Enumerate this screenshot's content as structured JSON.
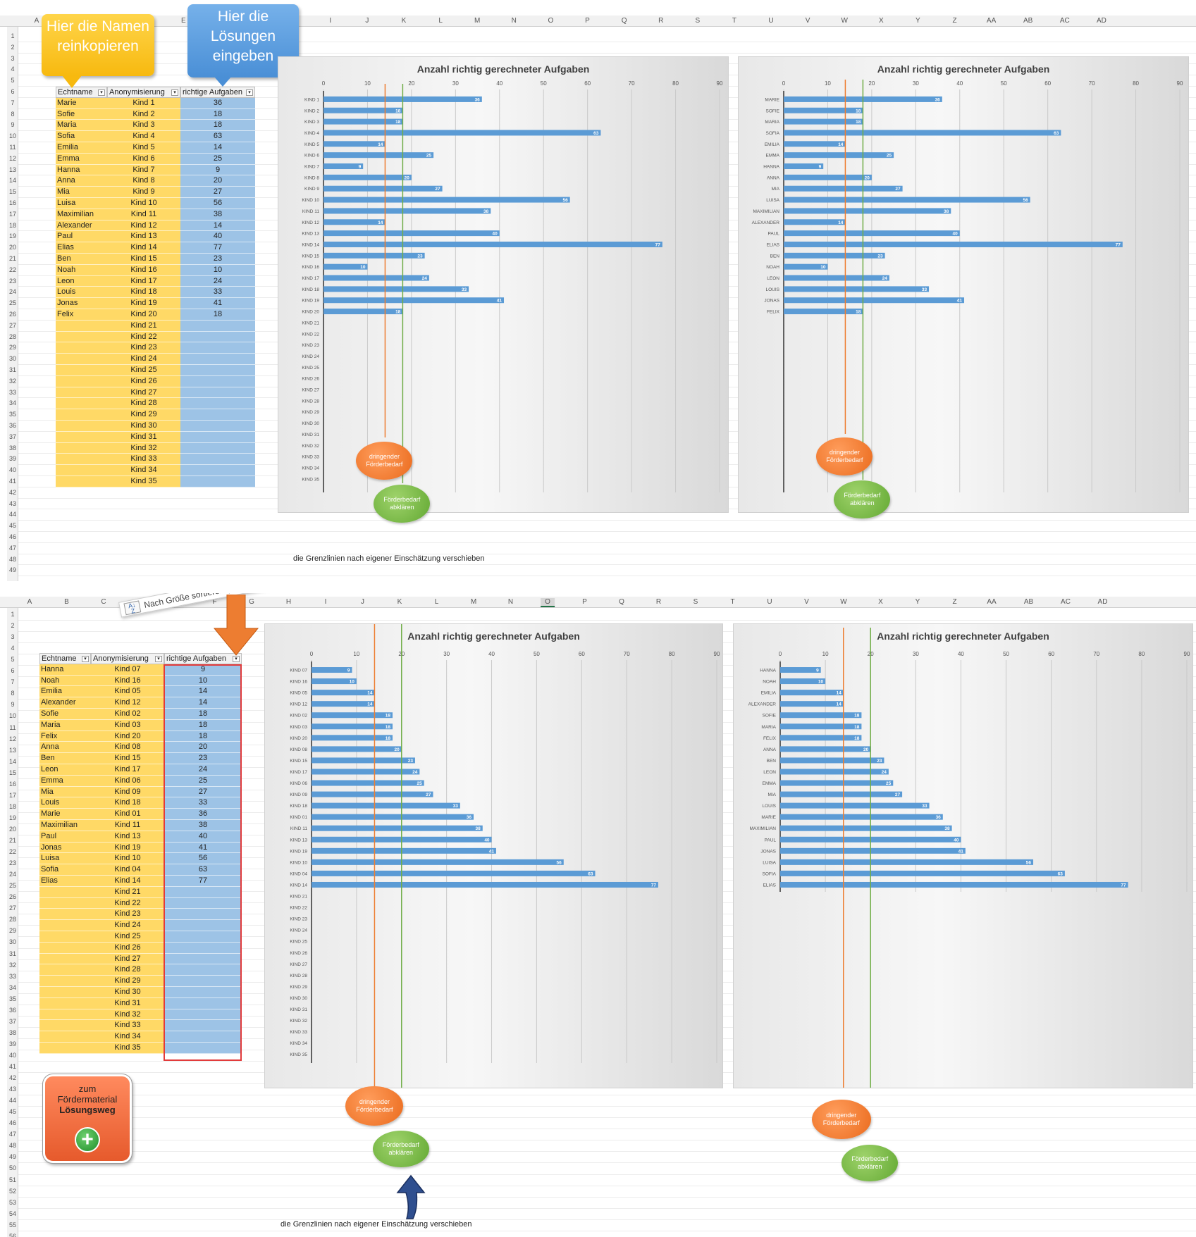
{
  "top": {
    "columns": [
      "A",
      "B",
      "C",
      "D",
      "E",
      "F",
      "G",
      "H",
      "I",
      "J",
      "K",
      "L",
      "M",
      "N",
      "O",
      "P",
      "Q",
      "R",
      "S",
      "T",
      "U",
      "V",
      "W",
      "X",
      "Y",
      "Z",
      "AA",
      "AB",
      "AC",
      "AD"
    ],
    "rows": [
      "1",
      "2",
      "3",
      "4",
      "5",
      "6",
      "7",
      "8",
      "9",
      "10",
      "11",
      "12",
      "13",
      "14",
      "15",
      "16",
      "17",
      "18",
      "19",
      "20",
      "21",
      "22",
      "23",
      "24",
      "25",
      "26",
      "27",
      "28",
      "29",
      "30",
      "31",
      "32",
      "33",
      "34",
      "35",
      "36",
      "37",
      "38",
      "39",
      "40",
      "41",
      "42",
      "43",
      "44",
      "45",
      "46",
      "47",
      "48",
      "49"
    ],
    "callout_names": "Hier die Namen reinkopieren",
    "callout_solutions": "Hier die Lösungen eingeben",
    "headers": [
      "Echtname",
      "Anonymisierung",
      "richtige Aufgaben"
    ],
    "table": [
      [
        "Marie",
        "Kind 1",
        "36"
      ],
      [
        "Sofie",
        "Kind 2",
        "18"
      ],
      [
        "Maria",
        "Kind 3",
        "18"
      ],
      [
        "Sofia",
        "Kind 4",
        "63"
      ],
      [
        "Emilia",
        "Kind 5",
        "14"
      ],
      [
        "Emma",
        "Kind 6",
        "25"
      ],
      [
        "Hanna",
        "Kind 7",
        "9"
      ],
      [
        "Anna",
        "Kind 8",
        "20"
      ],
      [
        "Mia",
        "Kind 9",
        "27"
      ],
      [
        "Luisa",
        "Kind 10",
        "56"
      ],
      [
        "Maximilian",
        "Kind 11",
        "38"
      ],
      [
        "Alexander",
        "Kind 12",
        "14"
      ],
      [
        "Paul",
        "Kind 13",
        "40"
      ],
      [
        "Elias",
        "Kind 14",
        "77"
      ],
      [
        "Ben",
        "Kind 15",
        "23"
      ],
      [
        "Noah",
        "Kind 16",
        "10"
      ],
      [
        "Leon",
        "Kind 17",
        "24"
      ],
      [
        "Louis",
        "Kind 18",
        "33"
      ],
      [
        "Jonas",
        "Kind 19",
        "41"
      ],
      [
        "Felix",
        "Kind 20",
        "18"
      ],
      [
        "",
        "Kind 21",
        ""
      ],
      [
        "",
        "Kind 22",
        ""
      ],
      [
        "",
        "Kind 23",
        ""
      ],
      [
        "",
        "Kind 24",
        ""
      ],
      [
        "",
        "Kind 25",
        ""
      ],
      [
        "",
        "Kind 26",
        ""
      ],
      [
        "",
        "Kind 27",
        ""
      ],
      [
        "",
        "Kind 28",
        ""
      ],
      [
        "",
        "Kind 29",
        ""
      ],
      [
        "",
        "Kind 30",
        ""
      ],
      [
        "",
        "Kind 31",
        ""
      ],
      [
        "",
        "Kind 32",
        ""
      ],
      [
        "",
        "Kind 33",
        ""
      ],
      [
        "",
        "Kind 34",
        ""
      ],
      [
        "",
        "Kind 35",
        ""
      ]
    ],
    "note": "die Grenzlinien nach eigener Einschätzung verschieben"
  },
  "bottom": {
    "columns": [
      "A",
      "B",
      "C",
      "D",
      "E",
      "F",
      "G",
      "H",
      "I",
      "J",
      "K",
      "L",
      "M",
      "N",
      "O",
      "P",
      "Q",
      "R",
      "S",
      "T",
      "U",
      "V",
      "W",
      "X",
      "Y",
      "Z",
      "AA",
      "AB",
      "AC",
      "AD"
    ],
    "selected_column": "O",
    "rows": [
      "1",
      "2",
      "3",
      "4",
      "5",
      "6",
      "7",
      "8",
      "9",
      "10",
      "11",
      "12",
      "13",
      "14",
      "15",
      "16",
      "17",
      "18",
      "19",
      "20",
      "21",
      "22",
      "23",
      "24",
      "25",
      "26",
      "27",
      "28",
      "29",
      "30",
      "31",
      "32",
      "33",
      "34",
      "35",
      "36",
      "37",
      "38",
      "39",
      "40",
      "41",
      "42",
      "43",
      "44",
      "45",
      "46",
      "47",
      "48",
      "49",
      "50",
      "51",
      "52",
      "53",
      "54",
      "55",
      "56"
    ],
    "sort_label": "Nach Größe sortieren (aufsteigend)",
    "headers": [
      "Echtname",
      "Anonymisierung",
      "richtige Aufgaben"
    ],
    "table": [
      [
        "Hanna",
        "Kind 07",
        "9"
      ],
      [
        "Noah",
        "Kind 16",
        "10"
      ],
      [
        "Emilia",
        "Kind 05",
        "14"
      ],
      [
        "Alexander",
        "Kind 12",
        "14"
      ],
      [
        "Sofie",
        "Kind 02",
        "18"
      ],
      [
        "Maria",
        "Kind 03",
        "18"
      ],
      [
        "Felix",
        "Kind 20",
        "18"
      ],
      [
        "Anna",
        "Kind 08",
        "20"
      ],
      [
        "Ben",
        "Kind 15",
        "23"
      ],
      [
        "Leon",
        "Kind 17",
        "24"
      ],
      [
        "Emma",
        "Kind 06",
        "25"
      ],
      [
        "Mia",
        "Kind 09",
        "27"
      ],
      [
        "Louis",
        "Kind 18",
        "33"
      ],
      [
        "Marie",
        "Kind 01",
        "36"
      ],
      [
        "Maximilian",
        "Kind 11",
        "38"
      ],
      [
        "Paul",
        "Kind 13",
        "40"
      ],
      [
        "Jonas",
        "Kind 19",
        "41"
      ],
      [
        "Luisa",
        "Kind 10",
        "56"
      ],
      [
        "Sofia",
        "Kind 04",
        "63"
      ],
      [
        "Elias",
        "Kind 14",
        "77"
      ],
      [
        "",
        "Kind 21",
        ""
      ],
      [
        "",
        "Kind 22",
        ""
      ],
      [
        "",
        "Kind 23",
        ""
      ],
      [
        "",
        "Kind 24",
        ""
      ],
      [
        "",
        "Kind 25",
        ""
      ],
      [
        "",
        "Kind 26",
        ""
      ],
      [
        "",
        "Kind 27",
        ""
      ],
      [
        "",
        "Kind 28",
        ""
      ],
      [
        "",
        "Kind 29",
        ""
      ],
      [
        "",
        "Kind 30",
        ""
      ],
      [
        "",
        "Kind 31",
        ""
      ],
      [
        "",
        "Kind 32",
        ""
      ],
      [
        "",
        "Kind 33",
        ""
      ],
      [
        "",
        "Kind 34",
        ""
      ],
      [
        "",
        "Kind 35",
        ""
      ]
    ],
    "button_line1": "zum",
    "button_line2": "Fördermaterial",
    "button_line3": "Lösungsweg",
    "note": "die Grenzlinien nach eigener Einschätzung verschieben"
  },
  "bubbles": {
    "orange": "dringender Förderbedarf",
    "green": "Förderbedarf abklären"
  },
  "colors": {
    "bar": "#5b9bd5",
    "orange_line": "#ed7d31",
    "green_line": "#70ad47",
    "names_column": "#ffd966",
    "values_column": "#9dc3e6"
  },
  "chart_data": [
    {
      "type": "bar",
      "title": "Anzahl richtig gerechneter Aufgaben",
      "orientation": "horizontal",
      "xlim": [
        0,
        90
      ],
      "xticks": [
        0,
        10,
        20,
        30,
        40,
        50,
        60,
        70,
        80,
        90
      ],
      "categories": [
        "KIND 1",
        "KIND 2",
        "KIND 3",
        "KIND 4",
        "KIND 5",
        "KIND 6",
        "KIND 7",
        "KIND 8",
        "KIND 9",
        "KIND 10",
        "KIND 11",
        "KIND 12",
        "KIND 13",
        "KIND 14",
        "KIND 15",
        "KIND 16",
        "KIND 17",
        "KIND 18",
        "KIND 19",
        "KIND 20",
        "KIND 21",
        "KIND 22",
        "KIND 23",
        "KIND 24",
        "KIND 25",
        "KIND 26",
        "KIND 27",
        "KIND 28",
        "KIND 29",
        "KIND 30",
        "KIND 31",
        "KIND 32",
        "KIND 33",
        "KIND 34",
        "KIND 35"
      ],
      "values": [
        36,
        18,
        18,
        63,
        14,
        25,
        9,
        20,
        27,
        56,
        38,
        14,
        40,
        77,
        23,
        10,
        24,
        33,
        41,
        18,
        null,
        null,
        null,
        null,
        null,
        null,
        null,
        null,
        null,
        null,
        null,
        null,
        null,
        null,
        null
      ],
      "thresholds": [
        14,
        18
      ]
    },
    {
      "type": "bar",
      "title": "Anzahl richtig gerechneter Aufgaben",
      "orientation": "horizontal",
      "xlim": [
        0,
        90
      ],
      "xticks": [
        0,
        10,
        20,
        30,
        40,
        50,
        60,
        70,
        80,
        90
      ],
      "categories": [
        "MARIE",
        "SOFIE",
        "MARIA",
        "SOFIA",
        "EMILIA",
        "EMMA",
        "HANNA",
        "ANNA",
        "MIA",
        "LUISA",
        "MAXIMILIAN",
        "ALEXANDER",
        "PAUL",
        "ELIAS",
        "BEN",
        "NOAH",
        "LEON",
        "LOUIS",
        "JONAS",
        "FELIX"
      ],
      "values": [
        36,
        18,
        18,
        63,
        14,
        25,
        9,
        20,
        27,
        56,
        38,
        14,
        40,
        77,
        23,
        10,
        24,
        33,
        41,
        18
      ],
      "thresholds": [
        14,
        18
      ]
    },
    {
      "type": "bar",
      "title": "Anzahl richtig gerechneter Aufgaben",
      "orientation": "horizontal",
      "xlim": [
        0,
        90
      ],
      "xticks": [
        0,
        10,
        20,
        30,
        40,
        50,
        60,
        70,
        80,
        90
      ],
      "categories": [
        "KIND 07",
        "KIND 16",
        "KIND 05",
        "KIND 12",
        "KIND 02",
        "KIND 03",
        "KIND 20",
        "KIND 08",
        "KIND 15",
        "KIND 17",
        "KIND 06",
        "KIND 09",
        "KIND 18",
        "KIND 01",
        "KIND 11",
        "KIND 13",
        "KIND 19",
        "KIND 10",
        "KIND 04",
        "KIND 14",
        "KIND 21",
        "KIND 22",
        "KIND 23",
        "KIND 24",
        "KIND 25",
        "KIND 26",
        "KIND 27",
        "KIND 28",
        "KIND 29",
        "KIND 30",
        "KIND 31",
        "KIND 32",
        "KIND 33",
        "KIND 34",
        "KIND 35"
      ],
      "values": [
        9,
        10,
        14,
        14,
        18,
        18,
        18,
        20,
        23,
        24,
        25,
        27,
        33,
        36,
        38,
        40,
        41,
        56,
        63,
        77,
        null,
        null,
        null,
        null,
        null,
        null,
        null,
        null,
        null,
        null,
        null,
        null,
        null,
        null,
        null
      ],
      "thresholds": [
        14,
        20
      ]
    },
    {
      "type": "bar",
      "title": "Anzahl richtig gerechneter Aufgaben",
      "orientation": "horizontal",
      "xlim": [
        0,
        90
      ],
      "xticks": [
        0,
        10,
        20,
        30,
        40,
        50,
        60,
        70,
        80,
        90
      ],
      "categories": [
        "HANNA",
        "NOAH",
        "EMILIA",
        "ALEXANDER",
        "SOFIE",
        "MARIA",
        "FELIX",
        "ANNA",
        "BEN",
        "LEON",
        "EMMA",
        "MIA",
        "LOUIS",
        "MARIE",
        "MAXIMILIAN",
        "PAUL",
        "JONAS",
        "LUISA",
        "SOFIA",
        "ELIAS"
      ],
      "values": [
        9,
        10,
        14,
        14,
        18,
        18,
        18,
        20,
        23,
        24,
        25,
        27,
        33,
        36,
        38,
        40,
        41,
        56,
        63,
        77
      ],
      "thresholds": [
        14,
        20
      ]
    }
  ]
}
